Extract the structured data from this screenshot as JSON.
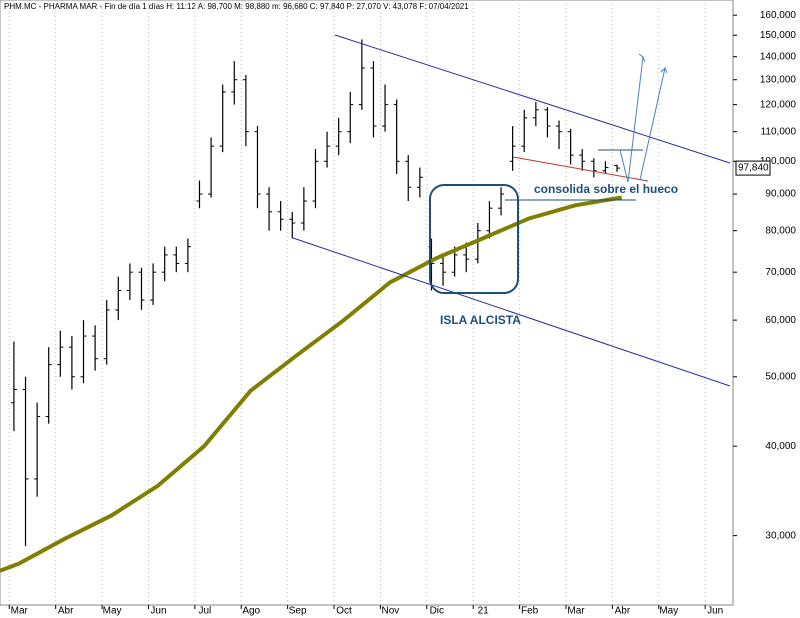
{
  "header": "PHM.MC - PHARMA MAR - Fin de día 1 días  H: 11:12  A: 98,700  M: 98,880  m: 96,680  C: 97,840  P: 27,070  V: 43,078  F: 07/04/2021",
  "chart_data": [
    {
      "type": "ohlc",
      "name": "PHM.MC",
      "color": "#000000",
      "x": [
        0.1,
        0.35,
        0.6,
        0.85,
        1.1,
        1.35,
        1.6,
        1.85,
        2.1,
        2.35,
        2.6,
        2.85,
        3.1,
        3.35,
        3.6,
        3.85,
        4.1,
        4.35,
        4.6,
        4.85,
        5.1,
        5.35,
        5.6,
        5.85,
        6.1,
        6.35,
        6.6,
        6.85,
        7.1,
        7.35,
        7.6,
        7.85,
        8.1,
        8.35,
        8.6,
        8.85,
        9.1,
        9.35,
        9.6,
        9.85,
        10.1,
        10.35,
        10.6,
        10.85,
        11.1,
        11.35,
        11.6,
        11.85,
        12.1,
        12.35,
        12.6,
        12.85,
        13.1
      ],
      "open": [
        46000,
        48000,
        36000,
        44000,
        52000,
        55000,
        50000,
        57000,
        53000,
        62000,
        66000,
        70000,
        64000,
        70000,
        74000,
        72000,
        88000,
        90000,
        105000,
        125000,
        130000,
        110000,
        90000,
        85000,
        83000,
        82000,
        88000,
        100000,
        105000,
        110000,
        120000,
        135000,
        112000,
        120000,
        100000,
        92000,
        76000,
        72000,
        70000,
        74000,
        73000,
        80000,
        86000,
        100000,
        105000,
        115000,
        118000,
        112000,
        110000,
        102000,
        100000,
        97000,
        98700
      ],
      "high": [
        56000,
        50000,
        46000,
        55000,
        58000,
        57000,
        60000,
        59000,
        64000,
        69000,
        72000,
        71000,
        72000,
        76000,
        76000,
        78000,
        94000,
        108000,
        128000,
        138000,
        132000,
        112000,
        92000,
        88000,
        85000,
        92000,
        104000,
        110000,
        115000,
        125000,
        148000,
        138000,
        128000,
        122000,
        102000,
        98000,
        78000,
        74000,
        76000,
        77000,
        82000,
        88000,
        92000,
        112000,
        118000,
        121000,
        119000,
        114000,
        111000,
        104000,
        101000,
        100000,
        98880
      ],
      "low": [
        42000,
        29000,
        34000,
        43000,
        50000,
        48000,
        49000,
        51000,
        52000,
        60000,
        64000,
        62000,
        63000,
        68000,
        70000,
        70000,
        86000,
        89000,
        103000,
        120000,
        105000,
        86000,
        80000,
        80000,
        78000,
        80000,
        86000,
        98000,
        102000,
        106000,
        118000,
        108000,
        110000,
        96000,
        88000,
        89000,
        66000,
        67000,
        69000,
        70000,
        72000,
        78000,
        84000,
        97000,
        103000,
        112000,
        108000,
        104000,
        99000,
        97000,
        95000,
        96000,
        96680
      ],
      "close": [
        48000,
        36000,
        44000,
        52000,
        55000,
        50000,
        57000,
        53000,
        62000,
        66000,
        70000,
        64000,
        70000,
        74000,
        72000,
        76000,
        90000,
        105000,
        125000,
        130000,
        110000,
        90000,
        85000,
        83000,
        82000,
        88000,
        100000,
        105000,
        110000,
        120000,
        135000,
        112000,
        120000,
        100000,
        92000,
        95000,
        72000,
        70000,
        74000,
        73000,
        80000,
        86000,
        90000,
        105000,
        115000,
        118000,
        112000,
        110000,
        102000,
        100000,
        97000,
        98000,
        97840
      ],
      "last": {
        "value": 97840,
        "label": "97,840"
      },
      "ma": {
        "color": "#808000",
        "x": [
          -0.2,
          0.2,
          1.2,
          2.2,
          3.2,
          4.2,
          5.2,
          6.2,
          7.2,
          8.2,
          9.2,
          10.2,
          11.2,
          12.2,
          13.2
        ],
        "values": [
          26800,
          27400,
          29700,
          32000,
          35200,
          40000,
          47800,
          53600,
          59900,
          67700,
          73200,
          78000,
          83200,
          86800,
          89000
        ]
      },
      "log_y": true,
      "grid": true,
      "xlim": [
        -0.2,
        15.6
      ],
      "ylim": [
        24000,
        168000
      ],
      "xticks": [
        {
          "value": 0,
          "label": "Mar"
        },
        {
          "value": 1,
          "label": "Abr"
        },
        {
          "value": 2,
          "label": "May"
        },
        {
          "value": 3,
          "label": "Jun"
        },
        {
          "value": 4,
          "label": "Jul"
        },
        {
          "value": 5,
          "label": "Ago"
        },
        {
          "value": 6,
          "label": "Sep"
        },
        {
          "value": 7,
          "label": "Oct"
        },
        {
          "value": 8,
          "label": "Nov"
        },
        {
          "value": 9,
          "label": "Dic"
        },
        {
          "value": 10,
          "label": "21"
        },
        {
          "value": 11,
          "label": "Feb"
        },
        {
          "value": 12,
          "label": "Mar"
        },
        {
          "value": 13,
          "label": "Abr"
        },
        {
          "value": 14,
          "label": "May"
        },
        {
          "value": 15,
          "label": "Jun"
        }
      ],
      "yticks": [
        {
          "value": 30000,
          "label": "30,000"
        },
        {
          "value": 40000,
          "label": "40,000"
        },
        {
          "value": 50000,
          "label": "50,000"
        },
        {
          "value": 60000,
          "label": "60,000"
        },
        {
          "value": 70000,
          "label": "70,000"
        },
        {
          "value": 80000,
          "label": "80,000"
        },
        {
          "value": 90000,
          "label": "90,000"
        },
        {
          "value": 100000,
          "label": "100,000"
        },
        {
          "value": 110000,
          "label": "110,000"
        },
        {
          "value": 120000,
          "label": "120,000"
        },
        {
          "value": 130000,
          "label": "130,000"
        },
        {
          "value": 140000,
          "label": "140,000"
        },
        {
          "value": 150000,
          "label": "150,000"
        },
        {
          "value": 160000,
          "label": "160,000"
        }
      ],
      "annotations": [
        "consolida sobre el hueco",
        "ISLA ALCISTA"
      ]
    }
  ]
}
